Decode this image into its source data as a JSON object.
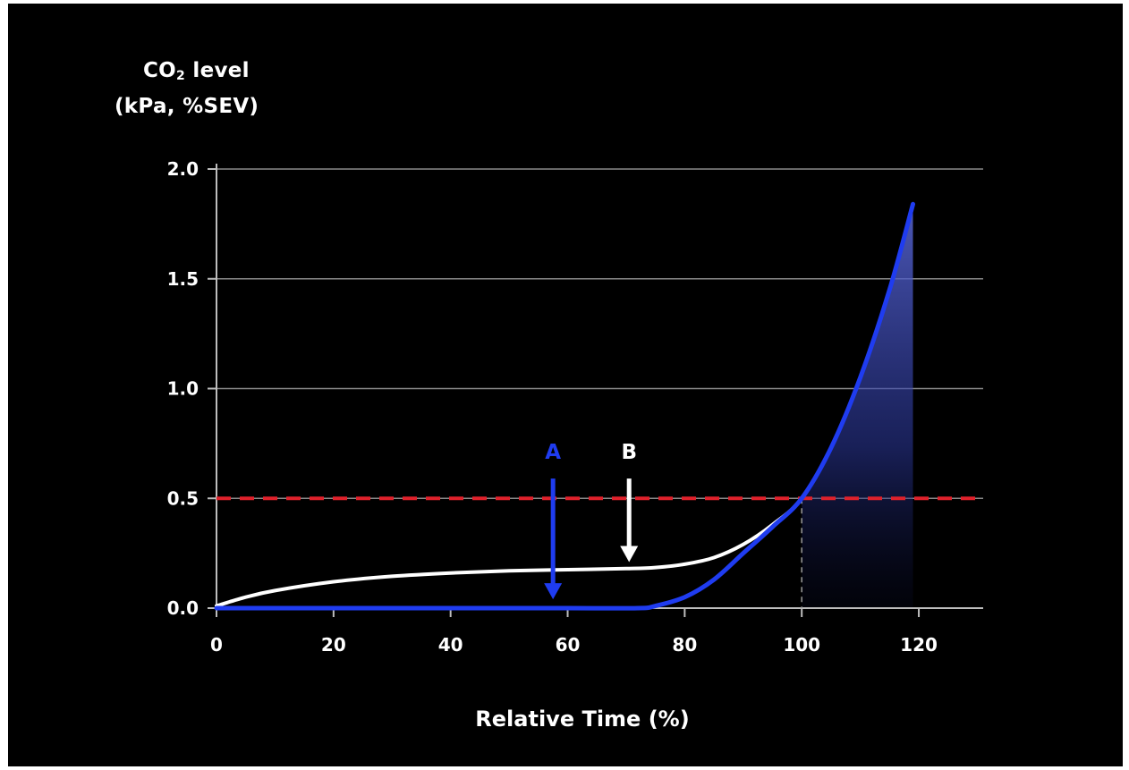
{
  "colors": {
    "background": "#000000",
    "axis": "#bdbdbd",
    "grid": "#8a8a8a",
    "white_series": "#ffffff",
    "blue_series": "#1f3cf0",
    "threshold": "#e0212b",
    "label_A": "#1f3cf0",
    "label_B": "#ffffff"
  },
  "chart_data": {
    "type": "line",
    "title": "",
    "ylabel_main": "CO",
    "ylabel_sub": "2",
    "ylabel_suffix": " level",
    "ylabel_line2": "(kPa, %SEV)",
    "xlabel": "Relative Time (%)",
    "xlim": [
      0,
      131
    ],
    "ylim": [
      0,
      2.0
    ],
    "xticks": [
      0,
      20,
      40,
      60,
      80,
      100,
      120
    ],
    "xtick_labels": [
      "0",
      "20",
      "40",
      "60",
      "80",
      "100",
      "120"
    ],
    "yticks": [
      0.0,
      0.5,
      1.0,
      1.5,
      2.0
    ],
    "ytick_labels": [
      "0.0",
      "0.5",
      "1.0",
      "1.5",
      "2.0"
    ],
    "grid": "horizontal",
    "series": [
      {
        "color": "white",
        "x": [
          0,
          5,
          10,
          20,
          30,
          40,
          50,
          60,
          70,
          75,
          80,
          85,
          90,
          95,
          100,
          105,
          110,
          115,
          119
        ],
        "y": [
          0.01,
          0.05,
          0.08,
          0.12,
          0.145,
          0.16,
          0.17,
          0.175,
          0.18,
          0.185,
          0.2,
          0.23,
          0.29,
          0.38,
          0.5,
          0.73,
          1.05,
          1.45,
          1.84
        ]
      },
      {
        "color": "blue",
        "x": [
          0,
          20,
          40,
          60,
          72,
          75,
          80,
          85,
          90,
          95,
          100,
          105,
          110,
          115,
          119
        ],
        "y": [
          0.0,
          0.0,
          0.0,
          0.0,
          0.0,
          0.01,
          0.05,
          0.13,
          0.25,
          0.37,
          0.5,
          0.73,
          1.05,
          1.45,
          1.84
        ]
      }
    ],
    "shaded_area": {
      "x_from": 100,
      "x_to": 119,
      "under": "blue"
    },
    "threshold_line": {
      "y": 0.5,
      "style": "dashed"
    },
    "vertical_marker": {
      "x": 100,
      "y_to": 0.5,
      "style": "dashed"
    },
    "annotations": [
      {
        "label": "A",
        "x": 57.5,
        "y_from": 0.59,
        "y_to": 0.04
      },
      {
        "label": "B",
        "x": 70.5,
        "y_from": 0.59,
        "y_to": 0.21
      }
    ]
  }
}
